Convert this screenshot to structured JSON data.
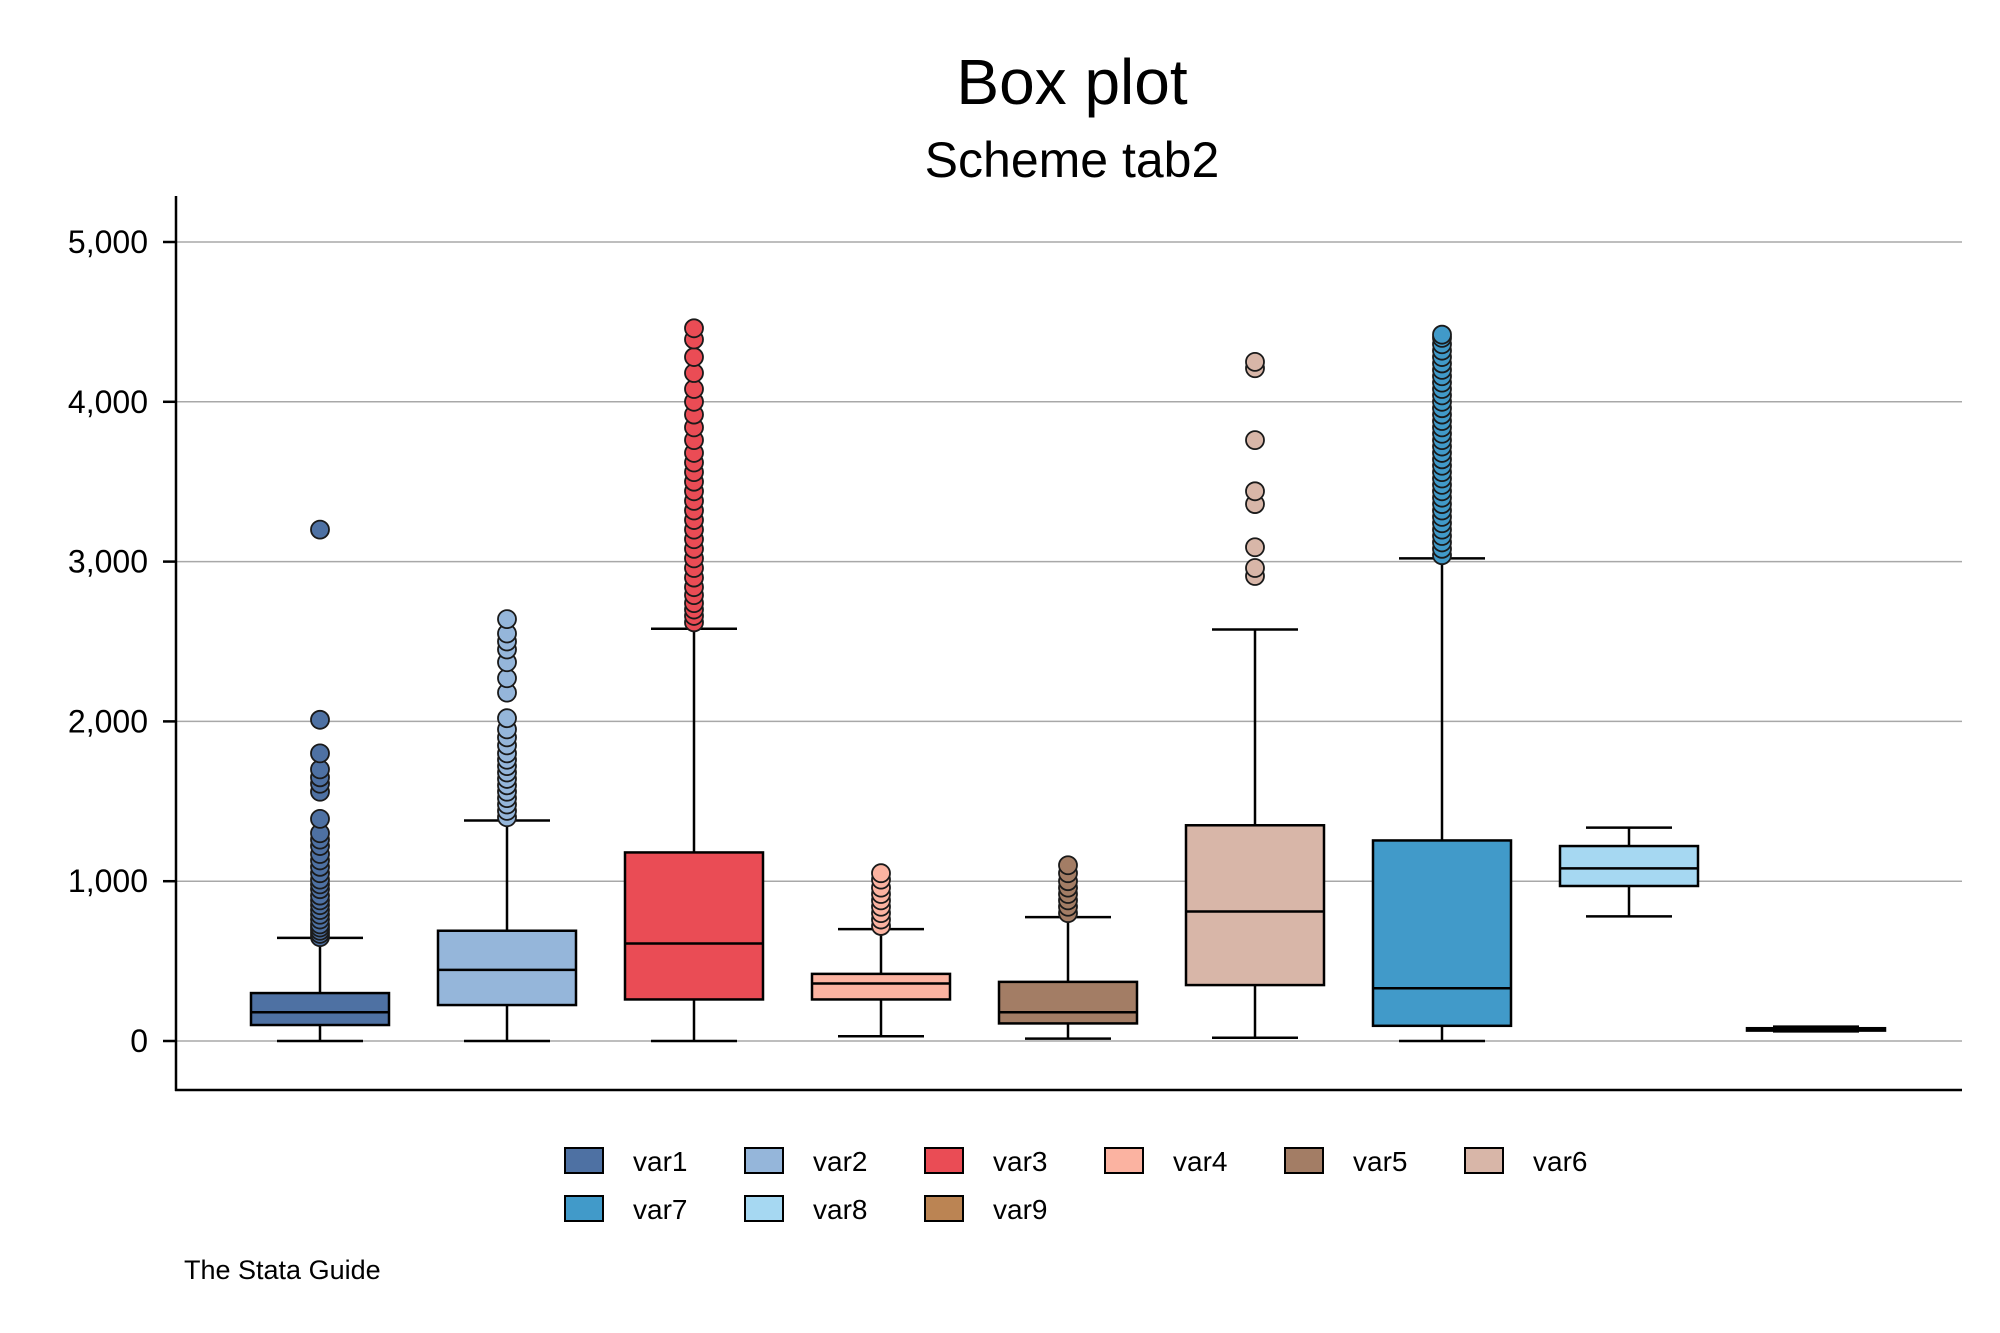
{
  "chart_data": {
    "type": "box",
    "title": "Box plot",
    "subtitle": "Scheme tab2",
    "note": "The Stata Guide",
    "xlabel": "",
    "ylabel": "",
    "ylim": [
      -300,
      5300
    ],
    "yticks": [
      0,
      1000,
      2000,
      3000,
      4000,
      5000
    ],
    "ytick_labels": [
      "0",
      "1,000",
      "2,000",
      "3,000",
      "4,000",
      "5,000"
    ],
    "grid": true,
    "legend_position": "bottom",
    "series": [
      {
        "name": "var1",
        "color": "#4e71a3",
        "whisker_low": 0,
        "q1": 100,
        "median": 180,
        "q3": 300,
        "whisker_high": 645,
        "outliers": [
          650,
          670,
          690,
          710,
          730,
          760,
          790,
          820,
          850,
          880,
          910,
          950,
          980,
          1010,
          1050,
          1090,
          1130,
          1170,
          1220,
          1260,
          1300,
          1390,
          1560,
          1610,
          1650,
          1700,
          1800,
          2010,
          3200
        ]
      },
      {
        "name": "var2",
        "color": "#95b6da",
        "whisker_low": 0,
        "q1": 225,
        "median": 445,
        "q3": 690,
        "whisker_high": 1380,
        "outliers": [
          1400,
          1440,
          1480,
          1520,
          1560,
          1600,
          1640,
          1680,
          1720,
          1760,
          1800,
          1850,
          1900,
          1950,
          2020,
          2180,
          2270,
          2370,
          2450,
          2500,
          2550,
          2640
        ]
      },
      {
        "name": "var3",
        "color": "#ea4c55",
        "whisker_low": 0,
        "q1": 260,
        "median": 610,
        "q3": 1180,
        "whisker_high": 2580,
        "outliers": [
          2620,
          2660,
          2700,
          2740,
          2790,
          2840,
          2900,
          2960,
          3020,
          3080,
          3140,
          3200,
          3260,
          3320,
          3380,
          3440,
          3500,
          3560,
          3620,
          3680,
          3760,
          3840,
          3920,
          4000,
          4080,
          4180,
          4280,
          4390,
          4460
        ]
      },
      {
        "name": "var4",
        "color": "#fbb3a1",
        "whisker_low": 30,
        "q1": 260,
        "median": 360,
        "q3": 420,
        "whisker_high": 700,
        "outliers": [
          720,
          760,
          800,
          840,
          880,
          920,
          960,
          1010,
          1050
        ]
      },
      {
        "name": "var5",
        "color": "#a37d65",
        "whisker_low": 15,
        "q1": 110,
        "median": 180,
        "q3": 370,
        "whisker_high": 775,
        "outliers": [
          800,
          840,
          880,
          920,
          960,
          1000,
          1050,
          1100
        ]
      },
      {
        "name": "var6",
        "color": "#d8b6a8",
        "whisker_low": 20,
        "q1": 350,
        "median": 810,
        "q3": 1350,
        "whisker_high": 2575,
        "outliers": [
          2910,
          2960,
          3090,
          3360,
          3440,
          3760,
          4210,
          4250
        ]
      },
      {
        "name": "var7",
        "color": "#419ac9",
        "whisker_low": 0,
        "q1": 95,
        "median": 330,
        "q3": 1255,
        "whisker_high": 3020,
        "outliers": [
          3040,
          3080,
          3120,
          3160,
          3200,
          3240,
          3280,
          3320,
          3360,
          3400,
          3440,
          3480,
          3520,
          3560,
          3600,
          3640,
          3680,
          3720,
          3760,
          3800,
          3840,
          3880,
          3920,
          3960,
          4000,
          4040,
          4080,
          4120,
          4160,
          4200,
          4240,
          4280,
          4320,
          4360,
          4400,
          4420
        ]
      },
      {
        "name": "var8",
        "color": "#a6d8f2",
        "whisker_low": 780,
        "q1": 970,
        "median": 1080,
        "q3": 1220,
        "whisker_high": 1335,
        "outliers": []
      },
      {
        "name": "var9",
        "color": "#bb8453",
        "whisker_low": 60,
        "q1": 65,
        "median": 75,
        "q3": 80,
        "whisker_high": 90,
        "outliers": []
      }
    ]
  }
}
